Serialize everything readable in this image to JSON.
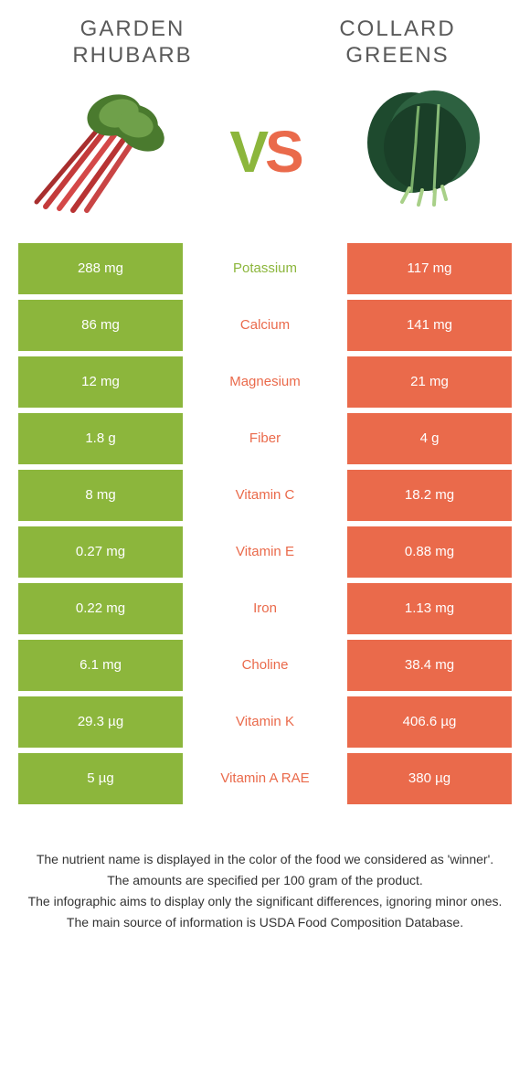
{
  "food1": {
    "title_line1": "Garden",
    "title_line2": "rhubarb"
  },
  "food2": {
    "title_line1": "Collard",
    "title_line2": "greens"
  },
  "colors": {
    "green": "#8cb63c",
    "orange": "#ea6a4b",
    "label_green": "#8cb63c",
    "label_orange": "#ea6a4b"
  },
  "rows": [
    {
      "nutrient": "Potassium",
      "left": "288 mg",
      "right": "117 mg",
      "winner": "left"
    },
    {
      "nutrient": "Calcium",
      "left": "86 mg",
      "right": "141 mg",
      "winner": "right"
    },
    {
      "nutrient": "Magnesium",
      "left": "12 mg",
      "right": "21 mg",
      "winner": "right"
    },
    {
      "nutrient": "Fiber",
      "left": "1.8 g",
      "right": "4 g",
      "winner": "right"
    },
    {
      "nutrient": "Vitamin C",
      "left": "8 mg",
      "right": "18.2 mg",
      "winner": "right"
    },
    {
      "nutrient": "Vitamin E",
      "left": "0.27 mg",
      "right": "0.88 mg",
      "winner": "right"
    },
    {
      "nutrient": "Iron",
      "left": "0.22 mg",
      "right": "1.13 mg",
      "winner": "right"
    },
    {
      "nutrient": "Choline",
      "left": "6.1 mg",
      "right": "38.4 mg",
      "winner": "right"
    },
    {
      "nutrient": "Vitamin K",
      "left": "29.3 µg",
      "right": "406.6 µg",
      "winner": "right"
    },
    {
      "nutrient": "Vitamin A RAE",
      "left": "5 µg",
      "right": "380 µg",
      "winner": "right"
    }
  ],
  "footer": {
    "l1": "The nutrient name is displayed in the color of the food we considered as 'winner'.",
    "l2": "The amounts are specified per 100 gram of the product.",
    "l3": "The infographic aims to display only the significant differences, ignoring minor ones.",
    "l4": "The main source of information is USDA Food Composition Database."
  }
}
